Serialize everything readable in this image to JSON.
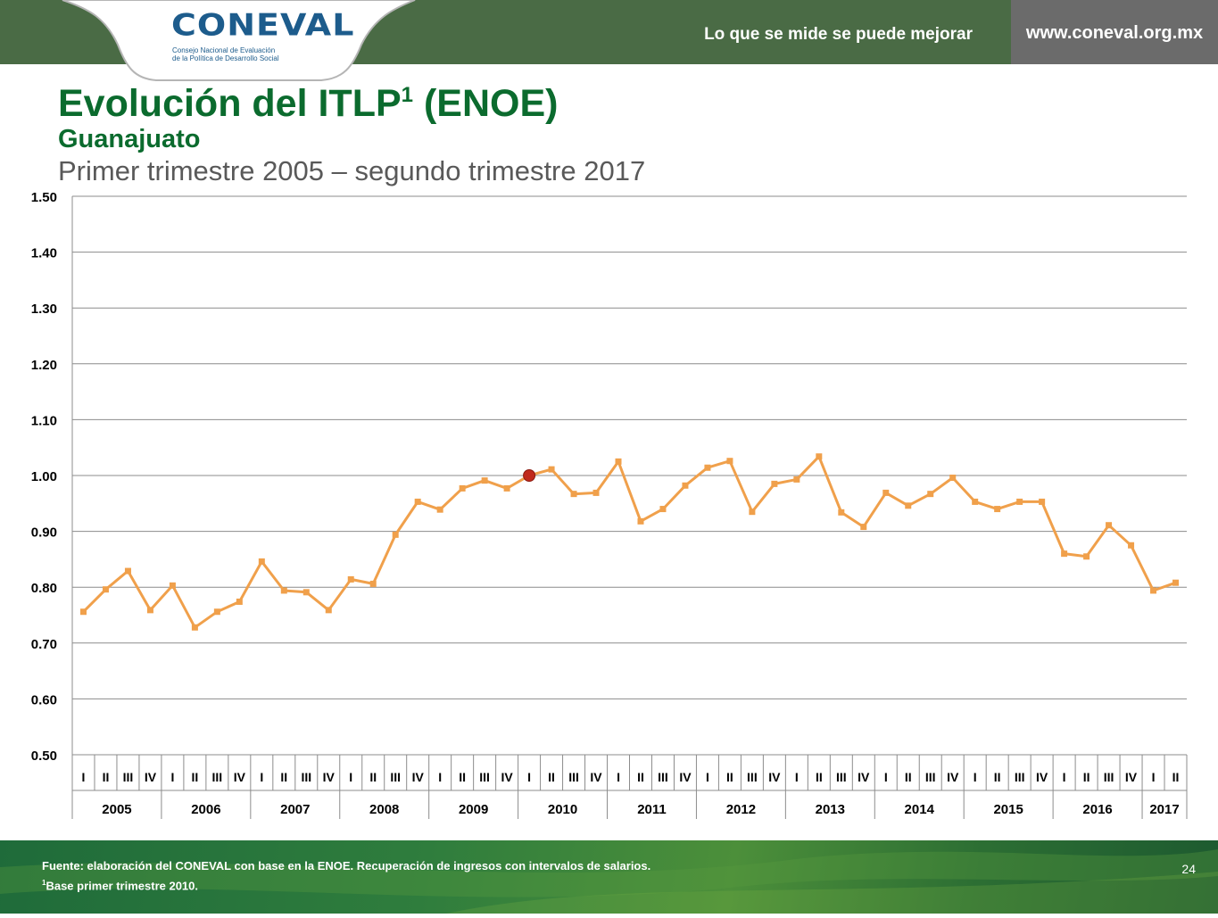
{
  "header": {
    "logo_text": "CONEVAL",
    "logo_subtitle_line1": "Consejo Nacional de Evaluación",
    "logo_subtitle_line2": "de la Política de Desarrollo Social",
    "slogan": "Lo que se mide se puede mejorar",
    "url": "www.coneval.org.mx"
  },
  "slide": {
    "title": "Evolución del ITLP",
    "title_superscript": "1",
    "title_suffix": " (ENOE)",
    "subtitle": "Guanajuato",
    "period": "Primer trimestre 2005 – segundo trimestre 2017"
  },
  "chart_data": {
    "type": "line",
    "ylim": [
      0.5,
      1.5
    ],
    "yticks": [
      "0.50",
      "0.60",
      "0.70",
      "0.80",
      "0.90",
      "1.00",
      "1.10",
      "1.20",
      "1.30",
      "1.40",
      "1.50"
    ],
    "grid": true,
    "quarter_labels": [
      "I",
      "II",
      "III",
      "IV",
      "I",
      "II",
      "III",
      "IV",
      "I",
      "II",
      "III",
      "IV",
      "I",
      "II",
      "III",
      "IV",
      "I",
      "II",
      "III",
      "IV",
      "I",
      "II",
      "III",
      "IV",
      "I",
      "II",
      "III",
      "IV",
      "I",
      "II",
      "III",
      "IV",
      "I",
      "II",
      "III",
      "IV",
      "I",
      "II",
      "III",
      "IV",
      "I",
      "II",
      "III",
      "IV",
      "I",
      "II",
      "III",
      "IV",
      "I",
      "II"
    ],
    "years": [
      {
        "label": "2005",
        "quarters": 4
      },
      {
        "label": "2006",
        "quarters": 4
      },
      {
        "label": "2007",
        "quarters": 4
      },
      {
        "label": "2008",
        "quarters": 4
      },
      {
        "label": "2009",
        "quarters": 4
      },
      {
        "label": "2010",
        "quarters": 4
      },
      {
        "label": "2011",
        "quarters": 4
      },
      {
        "label": "2012",
        "quarters": 4
      },
      {
        "label": "2013",
        "quarters": 4
      },
      {
        "label": "2014",
        "quarters": 4
      },
      {
        "label": "2015",
        "quarters": 4
      },
      {
        "label": "2016",
        "quarters": 4
      },
      {
        "label": "2017",
        "quarters": 2
      }
    ],
    "series": [
      {
        "color": "#f0a04b",
        "values": [
          0.756,
          0.796,
          0.829,
          0.759,
          0.803,
          0.728,
          0.756,
          0.774,
          0.846,
          0.794,
          0.791,
          0.759,
          0.814,
          0.806,
          0.894,
          0.953,
          0.939,
          0.977,
          0.991,
          0.977,
          1.0,
          1.011,
          0.967,
          0.969,
          1.025,
          0.918,
          0.94,
          0.982,
          1.014,
          1.026,
          0.935,
          0.985,
          0.993,
          1.034,
          0.934,
          0.908,
          0.969,
          0.946,
          0.967,
          0.996,
          0.953,
          0.94,
          0.953,
          0.953,
          0.86,
          0.855,
          0.911,
          0.875,
          0.794,
          0.808
        ]
      }
    ],
    "highlight": {
      "index": 20,
      "value": 1.0,
      "color": "#c0291c"
    }
  },
  "footer": {
    "source": "Fuente: elaboración del CONEVAL con base en la ENOE. Recuperación de ingresos con intervalos de salarios.",
    "note_superscript": "1",
    "note": "Base primer trimestre 2010.",
    "page_number": "24"
  }
}
